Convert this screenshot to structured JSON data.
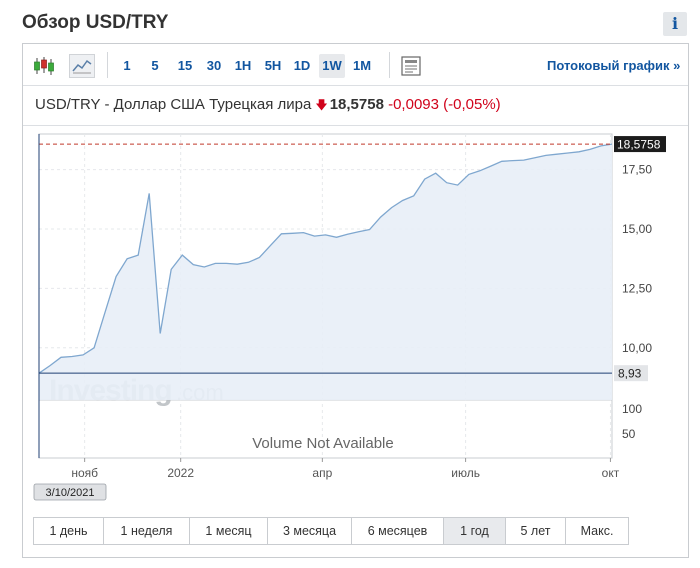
{
  "page": {
    "title": "Обзор USD/TRY",
    "info_label": "i"
  },
  "toolbar": {
    "intervals": [
      "1",
      "5",
      "15",
      "30",
      "1H",
      "5H",
      "1D",
      "1W",
      "1M"
    ],
    "active_interval": "1W",
    "stream_link": "Потоковый график »",
    "icons": [
      "candlestick-icon",
      "area-chart-icon",
      "news-list-icon"
    ]
  },
  "quote": {
    "symbol": "USD/TRY - Доллар США Турецкая лира",
    "direction": "down",
    "price": "18,5758",
    "change": "-0,0093",
    "change_pct": "(-0,05%)",
    "colors": {
      "down": "#d0021b",
      "link": "#1256a0"
    }
  },
  "ranges": {
    "items": [
      "1 день",
      "1 неделя",
      "1 месяц",
      "3 месяца",
      "6 месяцев",
      "1 год",
      "5 лет",
      "Макс."
    ],
    "active": "1 год"
  },
  "chart_data": {
    "type": "area",
    "x": [
      "2021-10-03",
      "2021-10-10",
      "2021-10-17",
      "2021-10-24",
      "2021-10-31",
      "2021-11-07",
      "2021-11-14",
      "2021-11-21",
      "2021-11-28",
      "2021-12-05",
      "2021-12-12",
      "2021-12-19",
      "2021-12-26",
      "2022-01-02",
      "2022-01-09",
      "2022-01-16",
      "2022-01-23",
      "2022-01-30",
      "2022-02-06",
      "2022-02-13",
      "2022-02-20",
      "2022-02-27",
      "2022-03-06",
      "2022-03-13",
      "2022-03-20",
      "2022-03-27",
      "2022-04-03",
      "2022-04-10",
      "2022-04-17",
      "2022-04-24",
      "2022-05-01",
      "2022-05-08",
      "2022-05-15",
      "2022-05-22",
      "2022-05-29",
      "2022-06-05",
      "2022-06-12",
      "2022-06-19",
      "2022-06-26",
      "2022-07-03",
      "2022-07-10",
      "2022-07-17",
      "2022-07-24",
      "2022-07-31",
      "2022-08-07",
      "2022-08-14",
      "2022-08-21",
      "2022-08-28",
      "2022-09-04",
      "2022-09-11",
      "2022-09-18",
      "2022-09-25",
      "2022-10-02"
    ],
    "y": [
      8.93,
      9.25,
      9.6,
      9.63,
      9.7,
      10.0,
      11.5,
      13.0,
      13.75,
      13.9,
      16.5,
      10.6,
      13.3,
      13.9,
      13.5,
      13.4,
      13.55,
      13.55,
      13.52,
      13.6,
      13.8,
      14.3,
      14.8,
      14.82,
      14.85,
      14.7,
      14.75,
      14.65,
      14.78,
      14.88,
      14.98,
      15.5,
      15.9,
      16.2,
      16.4,
      17.1,
      17.35,
      16.95,
      16.85,
      17.3,
      17.45,
      17.65,
      17.85,
      17.88,
      17.9,
      18.0,
      18.1,
      18.15,
      18.2,
      18.25,
      18.35,
      18.5,
      18.5758
    ],
    "x_ticks": [
      {
        "x": "2021-11-01",
        "label": "нояб"
      },
      {
        "x": "2022-01-01",
        "label": "2022"
      },
      {
        "x": "2022-04-01",
        "label": "апр"
      },
      {
        "x": "2022-07-01",
        "label": "июль"
      },
      {
        "x": "2022-10-01",
        "label": "окт"
      }
    ],
    "y_ticks": [
      "17,50",
      "15,00",
      "12,50",
      "10,00"
    ],
    "y_tick_values": [
      17.5,
      15.0,
      12.5,
      10.0
    ],
    "ylim": [
      7.8,
      19.0
    ],
    "last_value_label": "18,5758",
    "last_value": 18.5758,
    "crosshair_value_label": "8,93",
    "crosshair_value": 8.93,
    "crosshair_date": "3/10/2021",
    "volume_ticks": [
      "100",
      "50"
    ],
    "volume_note": "Volume Not Available",
    "watermark": {
      "main": "Investing",
      "suffix": ".com"
    },
    "grid": true,
    "colors": {
      "line": "#7fa7cf",
      "fill": "#e8eef7",
      "last_line": "#c0392b",
      "crosshair": "#1f3f73"
    }
  }
}
